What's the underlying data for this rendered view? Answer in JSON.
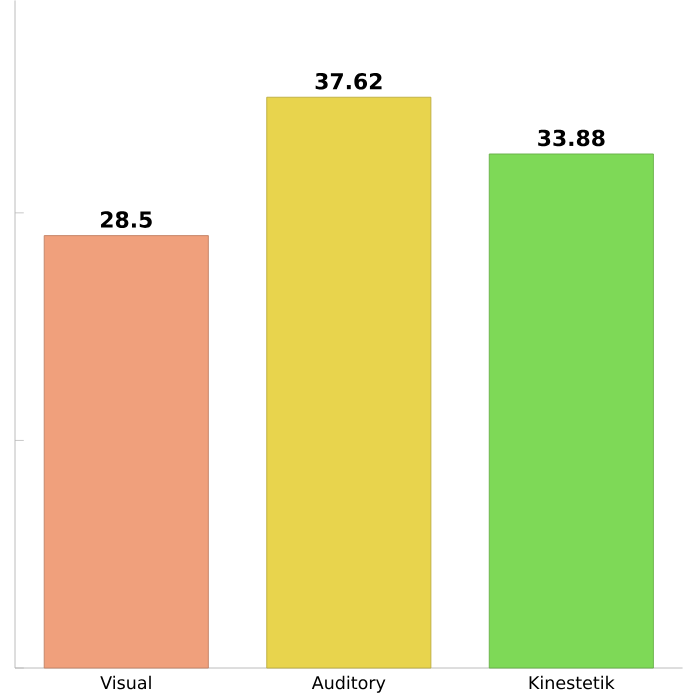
{
  "chart_data": {
    "type": "bar",
    "categories": [
      "Visual",
      "Auditory",
      "Kinestetik"
    ],
    "values": [
      28.5,
      37.62,
      33.88
    ],
    "colors": [
      "#f0a07c",
      "#e8d44d",
      "#7ed957"
    ],
    "data_labels": true,
    "ylim": [
      0,
      44
    ],
    "yticks": [
      {
        "value": 0,
        "label": null
      },
      {
        "value": 15,
        "label": null
      },
      {
        "value": 30,
        "label": null
      }
    ],
    "tick_labels": "x"
  }
}
